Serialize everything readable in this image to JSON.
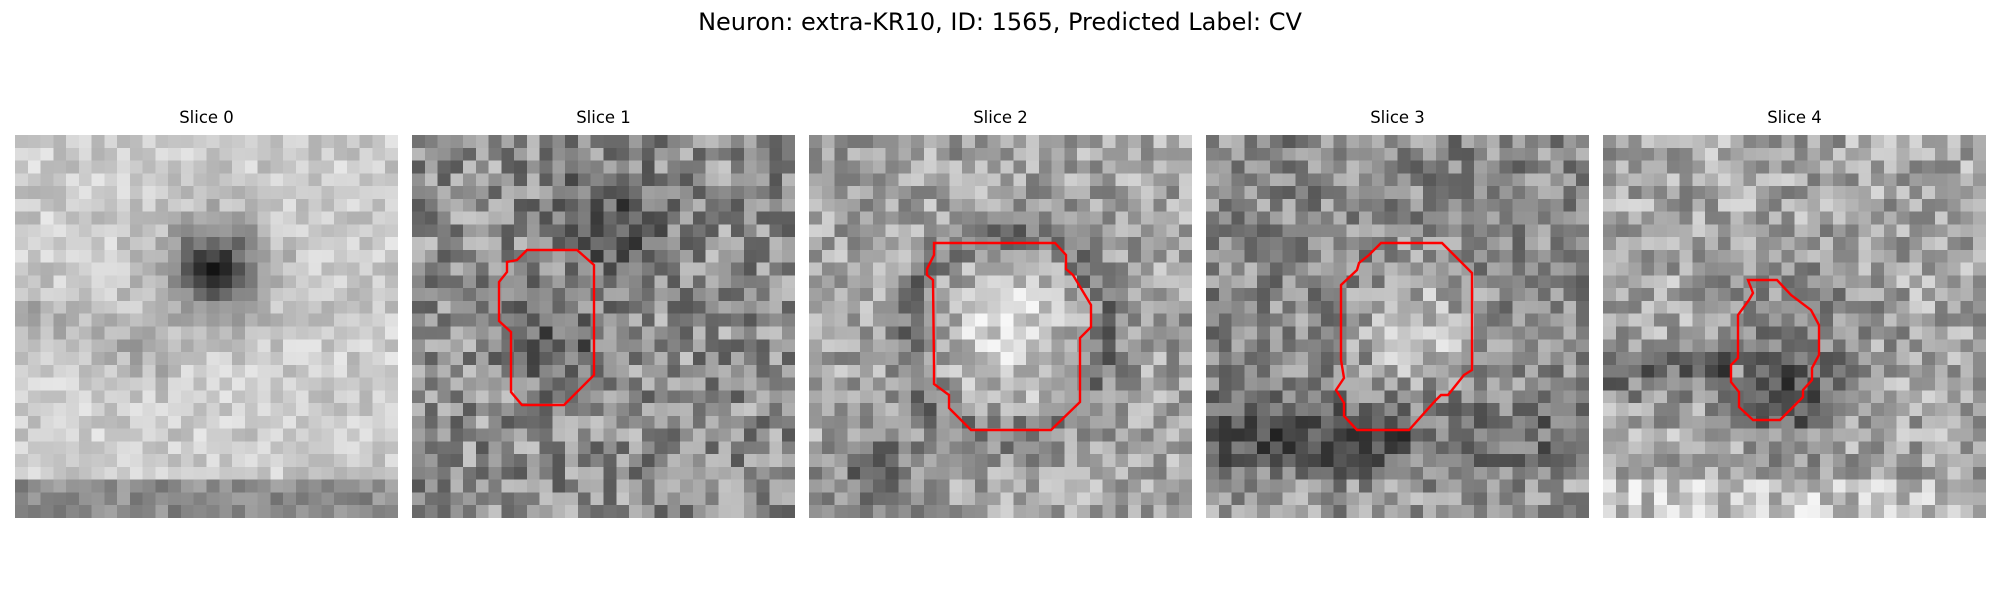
{
  "figure": {
    "title": "Neuron: extra-KR10, ID: 1565, Predicted Label: CV",
    "contour_color": "#ff0000",
    "panels": [
      {
        "title": "Slice 0",
        "seed": 11,
        "has_contour": false
      },
      {
        "title": "Slice 1",
        "seed": 23,
        "has_contour": true
      },
      {
        "title": "Slice 2",
        "seed": 37,
        "has_contour": true
      },
      {
        "title": "Slice 3",
        "seed": 41,
        "has_contour": true
      },
      {
        "title": "Slice 4",
        "seed": 59,
        "has_contour": true
      }
    ]
  }
}
